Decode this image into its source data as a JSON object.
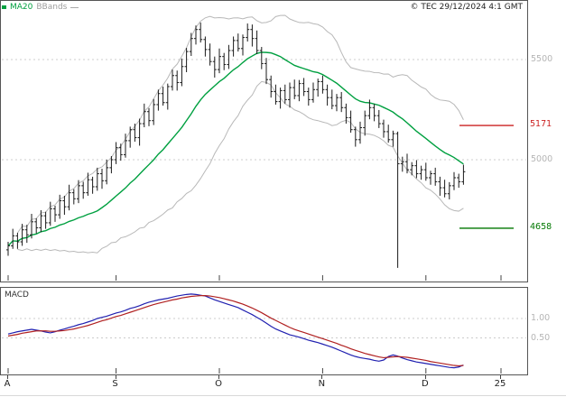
{
  "meta": {
    "copyright": "© TEC 29/12/2024 4:1 GMT"
  },
  "legend": {
    "ma20": "MA20",
    "bbands": "BBands"
  },
  "colors": {
    "candle": "#1a1a1a",
    "ma20": "#00a040",
    "bbands": "#b8b8b8",
    "grid": "#cccccc",
    "grid_text": "#b5b5b5",
    "axis_text": "#222222",
    "resistance": "#cc2222",
    "support": "#007700",
    "macd_line": "#2020b0",
    "macd_signal": "#b02020"
  },
  "chart_data": [
    {
      "type": "candlestick",
      "title": "",
      "ylabel": "",
      "ylim": [
        4400,
        5760
      ],
      "grid": "dotted-horizontal",
      "overlays": [
        "MA20",
        "BBands"
      ],
      "price_axis": {
        "gridlines": [
          {
            "value": 5500,
            "label": "5500"
          },
          {
            "value": 5000,
            "label": "5000"
          }
        ]
      },
      "levels": [
        {
          "value": 5171,
          "label": "5171",
          "color": "#cc2222",
          "role": "resistance"
        },
        {
          "value": 4658,
          "label": "4658",
          "color": "#007700",
          "role": "support"
        }
      ],
      "x_axis": [
        {
          "label": "A",
          "day": 0
        },
        {
          "label": "S",
          "day": 23
        },
        {
          "label": "O",
          "day": 45
        },
        {
          "label": "N",
          "day": 67
        },
        {
          "label": "D",
          "day": 89
        },
        {
          "label": "25",
          "day": 105
        }
      ],
      "candles": [
        [
          4550,
          4590,
          4520,
          4570
        ],
        [
          4570,
          4655,
          4555,
          4620
        ],
        [
          4620,
          4635,
          4555,
          4590
        ],
        [
          4590,
          4680,
          4570,
          4650
        ],
        [
          4650,
          4675,
          4585,
          4625
        ],
        [
          4625,
          4730,
          4607,
          4690
        ],
        [
          4690,
          4708,
          4632,
          4660
        ],
        [
          4660,
          4748,
          4638,
          4720
        ],
        [
          4720,
          4740,
          4655,
          4685
        ],
        [
          4685,
          4790,
          4670,
          4755
        ],
        [
          4755,
          4770,
          4690,
          4725
        ],
        [
          4725,
          4825,
          4705,
          4795
        ],
        [
          4795,
          4820,
          4725,
          4765
        ],
        [
          4765,
          4875,
          4747,
          4835
        ],
        [
          4835,
          4853,
          4777,
          4805
        ],
        [
          4805,
          4898,
          4783,
          4870
        ],
        [
          4870,
          4890,
          4805,
          4835
        ],
        [
          4835,
          4935,
          4820,
          4900
        ],
        [
          4900,
          4915,
          4830,
          4865
        ],
        [
          4865,
          4960,
          4845,
          4930
        ],
        [
          4930,
          4955,
          4855,
          4895
        ],
        [
          4895,
          5000,
          4877,
          4960
        ],
        [
          4960,
          5018,
          4932,
          5000
        ],
        [
          5000,
          5088,
          4978,
          5060
        ],
        [
          5060,
          5080,
          4995,
          5025
        ],
        [
          5025,
          5130,
          5010,
          5095
        ],
        [
          5095,
          5165,
          5060,
          5150
        ],
        [
          5150,
          5180,
          5090,
          5110
        ],
        [
          5110,
          5205,
          5070,
          5180
        ],
        [
          5180,
          5280,
          5162,
          5240
        ],
        [
          5240,
          5258,
          5167,
          5195
        ],
        [
          5195,
          5303,
          5173,
          5275
        ],
        [
          5275,
          5350,
          5245,
          5330
        ],
        [
          5330,
          5365,
          5270,
          5285
        ],
        [
          5285,
          5380,
          5250,
          5365
        ],
        [
          5365,
          5450,
          5345,
          5420
        ],
        [
          5420,
          5445,
          5345,
          5385
        ],
        [
          5385,
          5505,
          5367,
          5465
        ],
        [
          5465,
          5558,
          5437,
          5540
        ],
        [
          5540,
          5633,
          5518,
          5605
        ],
        [
          5605,
          5670,
          5575,
          5650
        ],
        [
          5650,
          5685,
          5585,
          5600
        ],
        [
          5600,
          5615,
          5515,
          5550
        ],
        [
          5550,
          5580,
          5470,
          5490
        ],
        [
          5490,
          5515,
          5410,
          5450
        ],
        [
          5450,
          5555,
          5432,
          5515
        ],
        [
          5515,
          5533,
          5447,
          5475
        ],
        [
          5475,
          5573,
          5453,
          5545
        ],
        [
          5545,
          5615,
          5515,
          5595
        ],
        [
          5595,
          5630,
          5540,
          5555
        ],
        [
          5555,
          5625,
          5520,
          5610
        ],
        [
          5610,
          5680,
          5590,
          5650
        ],
        [
          5650,
          5675,
          5565,
          5605
        ],
        [
          5605,
          5645,
          5527,
          5545
        ],
        [
          5545,
          5563,
          5452,
          5480
        ],
        [
          5480,
          5508,
          5378,
          5400
        ],
        [
          5400,
          5420,
          5310,
          5340
        ],
        [
          5340,
          5375,
          5275,
          5290
        ],
        [
          5290,
          5360,
          5255,
          5345
        ],
        [
          5345,
          5375,
          5280,
          5300
        ],
        [
          5300,
          5385,
          5260,
          5360
        ],
        [
          5360,
          5400,
          5302,
          5320
        ],
        [
          5320,
          5398,
          5292,
          5380
        ],
        [
          5380,
          5408,
          5318,
          5340
        ],
        [
          5340,
          5360,
          5270,
          5300
        ],
        [
          5300,
          5385,
          5285,
          5350
        ],
        [
          5350,
          5405,
          5315,
          5390
        ],
        [
          5390,
          5420,
          5330,
          5350
        ],
        [
          5350,
          5375,
          5270,
          5310
        ],
        [
          5310,
          5350,
          5252,
          5270
        ],
        [
          5270,
          5328,
          5242,
          5310
        ],
        [
          5310,
          5338,
          5238,
          5260
        ],
        [
          5260,
          5280,
          5180,
          5210
        ],
        [
          5210,
          5245,
          5135,
          5150
        ],
        [
          5150,
          5165,
          5065,
          5100
        ],
        [
          5100,
          5190,
          5080,
          5160
        ],
        [
          5160,
          5245,
          5120,
          5220
        ],
        [
          5220,
          5300,
          5202,
          5260
        ],
        [
          5260,
          5278,
          5192,
          5220
        ],
        [
          5220,
          5248,
          5158,
          5180
        ],
        [
          5180,
          5200,
          5110,
          5140
        ],
        [
          5140,
          5175,
          5085,
          5100
        ],
        [
          5100,
          5145,
          5065,
          5130
        ],
        [
          5130,
          5140,
          4460,
          4980
        ],
        [
          4980,
          5015,
          4940,
          4990
        ],
        [
          4990,
          5030,
          4932,
          4950
        ],
        [
          4950,
          4988,
          4922,
          4970
        ],
        [
          4970,
          4998,
          4908,
          4930
        ],
        [
          4930,
          4970,
          4900,
          4950
        ],
        [
          4950,
          4985,
          4895,
          4910
        ],
        [
          4910,
          4945,
          4875,
          4930
        ],
        [
          4930,
          4960,
          4870,
          4890
        ],
        [
          4890,
          4915,
          4820,
          4860
        ],
        [
          4860,
          4900,
          4812,
          4830
        ],
        [
          4830,
          4888,
          4802,
          4870
        ],
        [
          4870,
          4938,
          4848,
          4910
        ],
        [
          4910,
          4930,
          4860,
          4890
        ],
        [
          4890,
          4975,
          4875,
          4940
        ]
      ]
    },
    {
      "type": "line",
      "title": "MACD",
      "ylim": [
        -0.45,
        1.8
      ],
      "grid": "dotted-horizontal",
      "y_axis": {
        "gridlines": [
          {
            "value": 1.0,
            "label": "1.00"
          },
          {
            "value": 0.5,
            "label": "0.50"
          }
        ]
      },
      "series": [
        {
          "name": "MACD",
          "color": "#2020b0",
          "values": [
            0.6,
            0.63,
            0.66,
            0.68,
            0.7,
            0.72,
            0.7,
            0.68,
            0.65,
            0.63,
            0.66,
            0.7,
            0.73,
            0.77,
            0.8,
            0.84,
            0.87,
            0.91,
            0.95,
            1.0,
            1.03,
            1.06,
            1.1,
            1.14,
            1.17,
            1.21,
            1.26,
            1.29,
            1.33,
            1.38,
            1.42,
            1.45,
            1.48,
            1.5,
            1.52,
            1.55,
            1.58,
            1.6,
            1.62,
            1.63,
            1.62,
            1.6,
            1.58,
            1.53,
            1.48,
            1.44,
            1.4,
            1.36,
            1.32,
            1.28,
            1.22,
            1.16,
            1.1,
            1.03,
            0.96,
            0.88,
            0.8,
            0.73,
            0.68,
            0.63,
            0.58,
            0.55,
            0.52,
            0.48,
            0.44,
            0.41,
            0.38,
            0.34,
            0.3,
            0.26,
            0.21,
            0.16,
            0.11,
            0.06,
            0.02,
            -0.01,
            -0.03,
            -0.05,
            -0.08,
            -0.1,
            -0.07,
            0.02,
            0.06,
            0.03,
            -0.02,
            -0.06,
            -0.09,
            -0.12,
            -0.14,
            -0.16,
            -0.18,
            -0.2,
            -0.22,
            -0.24,
            -0.26,
            -0.27,
            -0.25,
            -0.2
          ]
        },
        {
          "name": "Signal",
          "color": "#b02020",
          "values": [
            0.55,
            0.57,
            0.59,
            0.62,
            0.64,
            0.66,
            0.68,
            0.68,
            0.68,
            0.67,
            0.67,
            0.68,
            0.69,
            0.71,
            0.73,
            0.76,
            0.79,
            0.82,
            0.86,
            0.9,
            0.94,
            0.97,
            1.01,
            1.05,
            1.08,
            1.12,
            1.16,
            1.2,
            1.24,
            1.28,
            1.32,
            1.36,
            1.39,
            1.42,
            1.45,
            1.48,
            1.5,
            1.53,
            1.55,
            1.57,
            1.58,
            1.59,
            1.59,
            1.58,
            1.56,
            1.54,
            1.51,
            1.48,
            1.45,
            1.41,
            1.37,
            1.32,
            1.27,
            1.21,
            1.15,
            1.08,
            1.01,
            0.95,
            0.89,
            0.83,
            0.77,
            0.72,
            0.68,
            0.64,
            0.6,
            0.56,
            0.52,
            0.48,
            0.44,
            0.4,
            0.36,
            0.31,
            0.27,
            0.22,
            0.18,
            0.14,
            0.1,
            0.07,
            0.04,
            0.01,
            -0.01,
            0.0,
            0.01,
            0.02,
            0.01,
            0.0,
            -0.02,
            -0.04,
            -0.06,
            -0.08,
            -0.11,
            -0.13,
            -0.15,
            -0.17,
            -0.19,
            -0.21,
            -0.22,
            -0.21
          ]
        }
      ]
    }
  ]
}
